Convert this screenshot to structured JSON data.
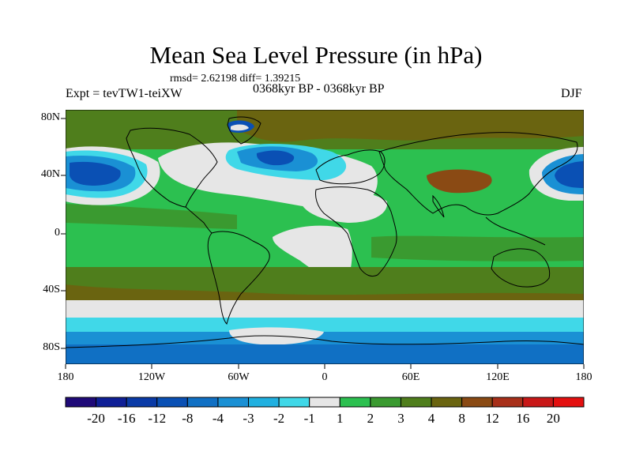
{
  "title": "Mean Sea Level Pressure (in hPa)",
  "stats": "rmsd= 2.62198 diff= 1.39215",
  "experiment": "Expt = tevTW1-teiXW",
  "period": "0368kyr BP - 0368kyr BP",
  "season": "DJF",
  "y_axis_labels": [
    "80N",
    "40N",
    "0",
    "40S",
    "80S"
  ],
  "x_axis_labels": [
    "180",
    "120W",
    "60W",
    "0",
    "60E",
    "120E",
    "180"
  ],
  "colorbar": {
    "labels": [
      "-20",
      "-16",
      "-12",
      "-8",
      "-4",
      "-3",
      "-2",
      "-1",
      "1",
      "2",
      "3",
      "4",
      "8",
      "12",
      "16",
      "20"
    ],
    "colors": [
      "#1f0a78",
      "#0f1f96",
      "#0a3aa6",
      "#0a50b4",
      "#1070c4",
      "#1a90d4",
      "#20b0e0",
      "#40d8e8",
      "#e6e6e6",
      "#2cc050",
      "#3a9a30",
      "#4f7e1c",
      "#6a6410",
      "#8a4a14",
      "#a8301a",
      "#c81818",
      "#e41010"
    ]
  },
  "map_colors": {
    "ocean_far_south": "#1070c4",
    "south_blue": "#1a90d4",
    "south_cyan": "#40d8e8",
    "near_neutral": "#e6e6e6",
    "green": "#2cc050",
    "mid_green": "#3a9a30",
    "olive": "#4f7e1c",
    "brown": "#6a6410",
    "dark_brown": "#8a4a14",
    "north_blue": "#0a50b4",
    "coast": "#000000"
  }
}
